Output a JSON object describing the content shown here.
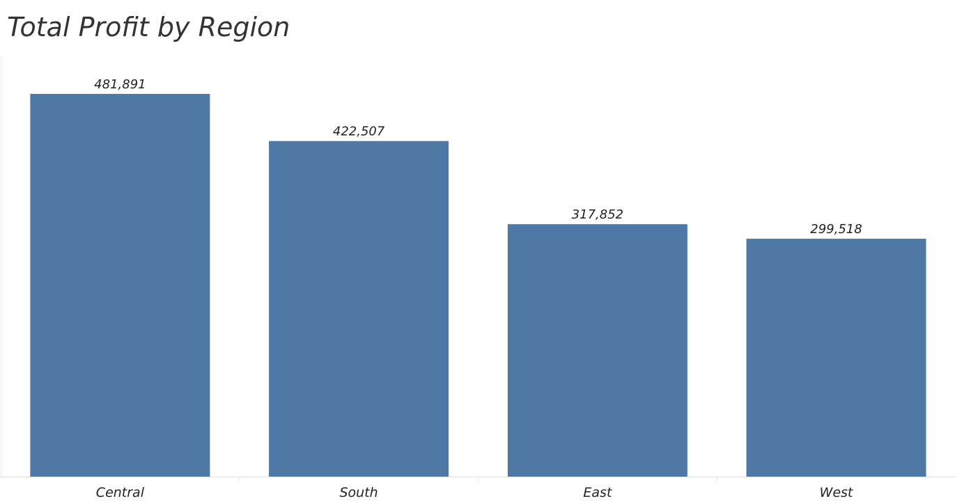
{
  "chart_data": {
    "type": "bar",
    "title": "Total Profit by Region",
    "xlabel": "",
    "ylabel": "",
    "categories": [
      "Central",
      "South",
      "East",
      "West"
    ],
    "values": [
      481891,
      422507,
      317852,
      299518
    ],
    "data_labels": [
      "481,891",
      "422,507",
      "317,852",
      "299,518"
    ],
    "ylim": [
      0,
      530000
    ],
    "grid": false,
    "legend": "none",
    "bar_color": "#4e79a7"
  }
}
